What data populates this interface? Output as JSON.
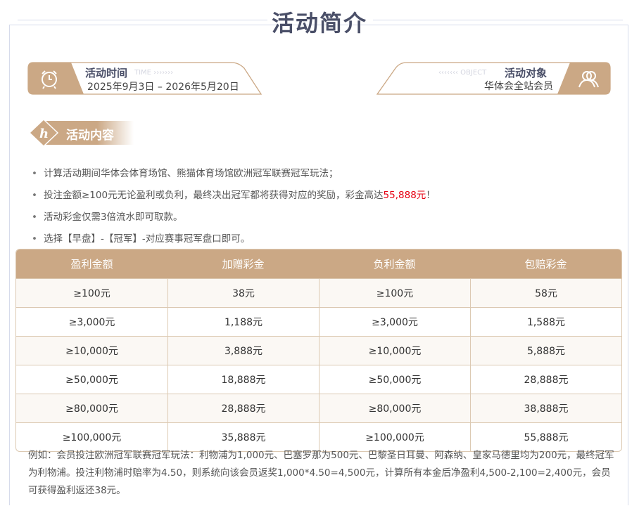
{
  "title": "活动简介",
  "time": {
    "heading": "活动时间",
    "deco": "TIME",
    "value": "2025年9月3日 – 2026年5月20日",
    "icon": "alarm-clock-icon"
  },
  "object": {
    "heading": "活动对象",
    "deco": "OBJECT",
    "value": "华体会全站会员",
    "icon": "users-icon"
  },
  "content": {
    "heading": "活动内容"
  },
  "rules": [
    {
      "text": "计算活动期间华体会体育场馆、熊猫体育场馆欧洲冠军联赛冠军玩法；"
    },
    {
      "text": "投注金额≥100元无论盈利或负利，最终决出冠军都将获得对应的奖励，彩金高达",
      "highlight": "55,888元",
      "suffix": "！"
    },
    {
      "text": "活动彩金仅需3倍流水即可取款。"
    },
    {
      "text": "选择【早盘】-【冠军】-对应赛事冠军盘口即可。"
    }
  ],
  "colors": {
    "accent": "#cba885",
    "highlight": "#e60012",
    "title": "#4a4f68"
  },
  "table": {
    "headers": [
      "盈利金额",
      "加赠彩金",
      "负利金额",
      "包赔彩金"
    ],
    "rows": [
      [
        "≥100元",
        "38元",
        "≥100元",
        "58元"
      ],
      [
        "≥3,000元",
        "1,188元",
        "≥3,000元",
        "1,588元"
      ],
      [
        "≥10,000元",
        "3,888元",
        "≥10,000元",
        "5,888元"
      ],
      [
        "≥50,000元",
        "18,888元",
        "≥50,000元",
        "28,888元"
      ],
      [
        "≥80,000元",
        "28,888元",
        "≥80,000元",
        "38,888元"
      ],
      [
        "≥100,000元",
        "35,888元",
        "≥100,000元",
        "55,888元"
      ]
    ]
  },
  "note": "例如：会员投注欧洲冠军联赛冠军玩法：利物浦为1,000元、巴塞罗那为500元、巴黎圣日耳曼、阿森纳、皇家马德里均为200元，最终冠军为利物浦。投注利物浦时赔率为4.50，则系统向该会员返奖1,000*4.50=4,500元，计算所有本金后净盈利4,500-2,100=2,400元，会员可获得盈利返还38元。"
}
